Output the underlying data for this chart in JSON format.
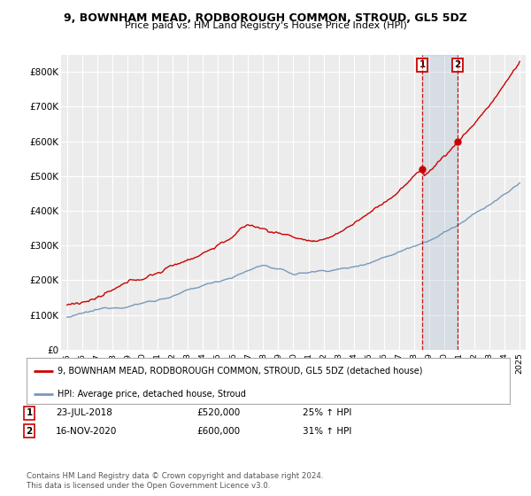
{
  "title": "9, BOWNHAM MEAD, RODBOROUGH COMMON, STROUD, GL5 5DZ",
  "subtitle": "Price paid vs. HM Land Registry's House Price Index (HPI)",
  "ylim": [
    0,
    850000
  ],
  "yticks": [
    0,
    100000,
    200000,
    300000,
    400000,
    500000,
    600000,
    700000,
    800000
  ],
  "ytick_labels": [
    "£0",
    "£100K",
    "£200K",
    "£300K",
    "£400K",
    "£500K",
    "£600K",
    "£700K",
    "£800K"
  ],
  "xtick_years": [
    "1995",
    "1996",
    "1997",
    "1998",
    "1999",
    "2000",
    "2001",
    "2002",
    "2003",
    "2004",
    "2005",
    "2006",
    "2007",
    "2008",
    "2009",
    "2010",
    "2011",
    "2012",
    "2013",
    "2014",
    "2015",
    "2016",
    "2017",
    "2018",
    "2019",
    "2020",
    "2021",
    "2022",
    "2023",
    "2024",
    "2025"
  ],
  "hpi_color": "#7799bb",
  "price_color": "#cc0000",
  "marker1_year": 2018.55,
  "marker2_year": 2020.88,
  "marker1_value": 520000,
  "marker2_value": 600000,
  "annotation1": [
    "1",
    "23-JUL-2018",
    "£520,000",
    "25% ↑ HPI"
  ],
  "annotation2": [
    "2",
    "16-NOV-2020",
    "£600,000",
    "31% ↑ HPI"
  ],
  "legend_label1": "9, BOWNHAM MEAD, RODBOROUGH COMMON, STROUD, GL5 5DZ (detached house)",
  "legend_label2": "HPI: Average price, detached house, Stroud",
  "footer": "Contains HM Land Registry data © Crown copyright and database right 2024.\nThis data is licensed under the Open Government Licence v3.0.",
  "bg_color": "#ffffff",
  "plot_bg_color": "#ececec",
  "grid_color": "#ffffff"
}
